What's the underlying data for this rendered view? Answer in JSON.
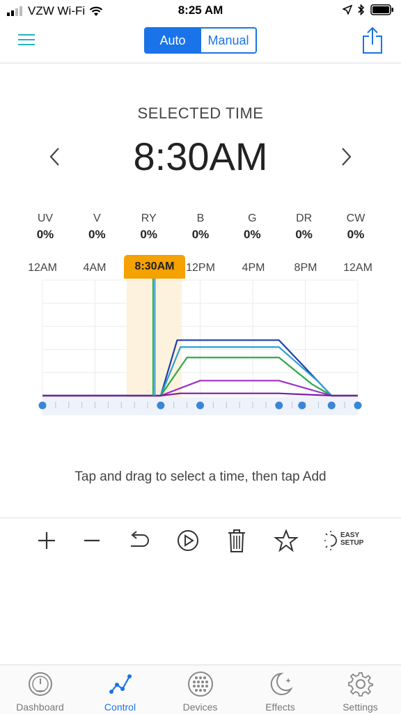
{
  "status": {
    "carrier": "VZW Wi-Fi",
    "time": "8:25 AM"
  },
  "header": {
    "mode_auto": "Auto",
    "mode_manual": "Manual",
    "active_mode": "Auto"
  },
  "selection": {
    "label": "SELECTED TIME",
    "time": "8:30AM"
  },
  "channels": [
    {
      "name": "UV",
      "value": "0%"
    },
    {
      "name": "V",
      "value": "0%"
    },
    {
      "name": "RY",
      "value": "0%"
    },
    {
      "name": "B",
      "value": "0%"
    },
    {
      "name": "G",
      "value": "0%"
    },
    {
      "name": "DR",
      "value": "0%"
    },
    {
      "name": "CW",
      "value": "0%"
    }
  ],
  "timeline": {
    "labels": [
      "12AM",
      "4AM",
      "12PM",
      "4PM",
      "8PM",
      "12AM"
    ],
    "selected_label": "8:30AM"
  },
  "chart_data": {
    "type": "line",
    "x_unit": "hour of day",
    "xlim": [
      0,
      24
    ],
    "selected_hour": 8.5,
    "point_hours": [
      0,
      9,
      12,
      18,
      19.75,
      22,
      24
    ],
    "series": [
      {
        "color": "#1f3fa8",
        "x": [
          0,
          9,
          10.25,
          18,
          22,
          24
        ],
        "y": [
          0,
          0,
          48,
          48,
          0,
          0
        ]
      },
      {
        "color": "#2aa0d8",
        "x": [
          0,
          9,
          10.5,
          18,
          21,
          22,
          24
        ],
        "y": [
          0,
          0,
          42,
          42,
          12,
          0,
          0
        ]
      },
      {
        "color": "#2ea84a",
        "x": [
          0,
          9,
          11,
          18,
          20.5,
          22,
          24
        ],
        "y": [
          0,
          0,
          33,
          33,
          10,
          0,
          0
        ]
      },
      {
        "color": "#9b30c8",
        "x": [
          0,
          9,
          12,
          18,
          22,
          24
        ],
        "y": [
          0,
          0,
          13,
          13,
          0,
          0
        ]
      },
      {
        "color": "#7a1fa0",
        "x": [
          0,
          9,
          10.5,
          18,
          22,
          24
        ],
        "y": [
          0,
          0,
          2,
          2,
          0,
          0
        ]
      }
    ]
  },
  "hint": "Tap and drag to select a time, then tap Add",
  "toolbar": {
    "easy_line1": "EASY",
    "easy_line2": "SETUP"
  },
  "tabs": [
    {
      "label": "Dashboard",
      "icon": "dashboard-gauge-icon"
    },
    {
      "label": "Control",
      "icon": "control-graph-icon"
    },
    {
      "label": "Devices",
      "icon": "devices-dots-icon"
    },
    {
      "label": "Effects",
      "icon": "effects-moon-icon"
    },
    {
      "label": "Settings",
      "icon": "settings-gear-icon"
    }
  ],
  "colors": {
    "accent": "#1a73e8",
    "highlight": "#f5a100",
    "teal": "#21b3c4"
  }
}
